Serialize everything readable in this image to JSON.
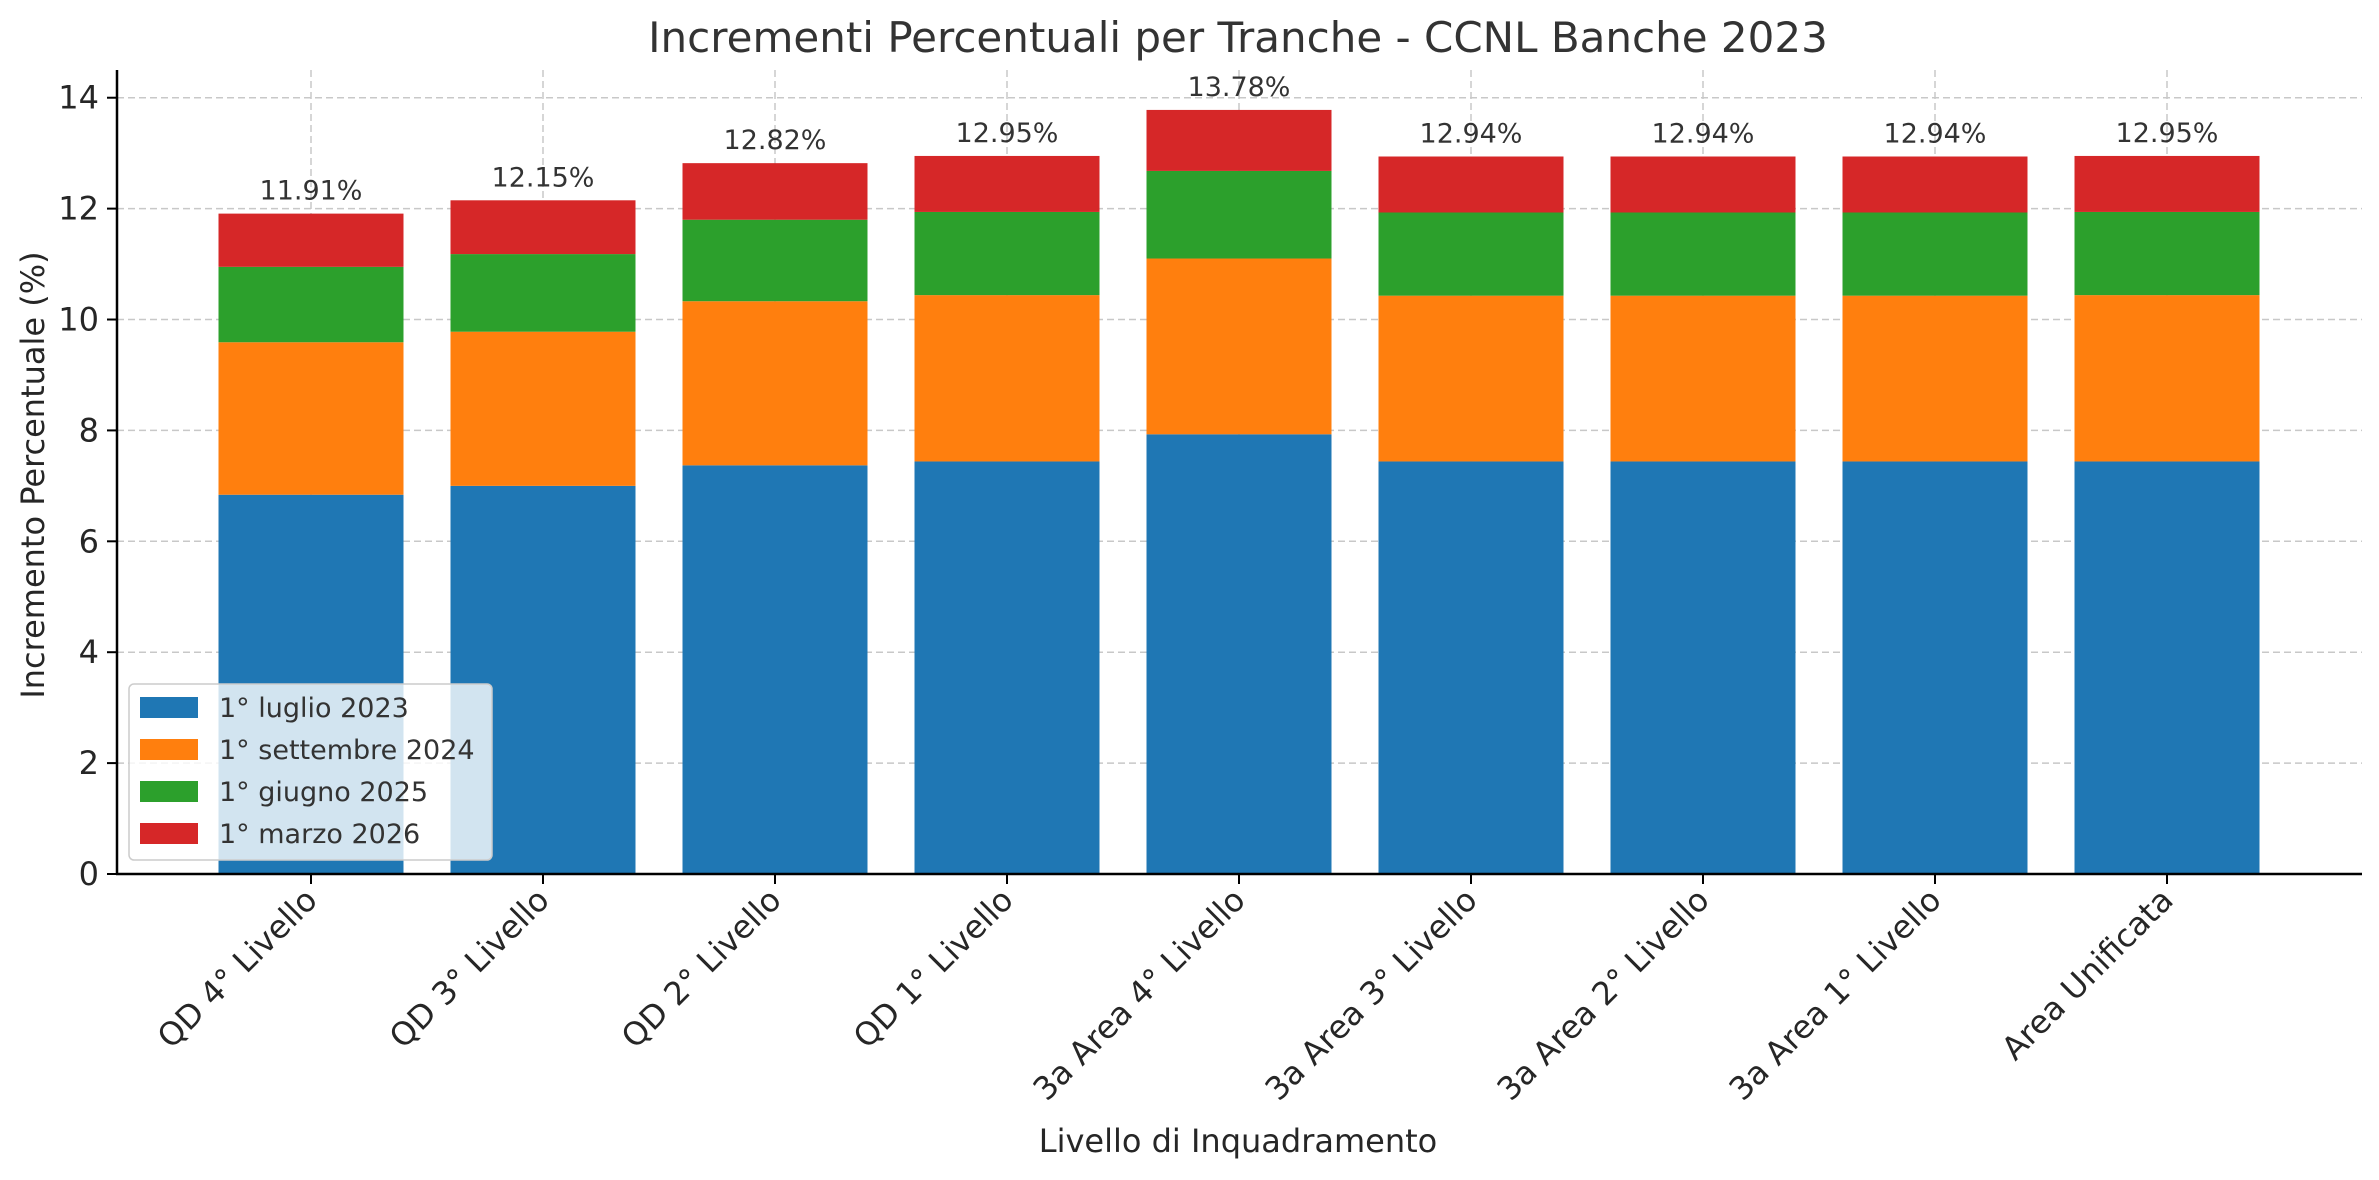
{
  "chart_data": {
    "type": "bar",
    "stacked": true,
    "title": "Incrementi Percentuali per Tranche - CCNL Banche 2023",
    "xlabel": "Livello di Inquadramento",
    "ylabel": "Incremento Percentuale (%)",
    "ylim": [
      0,
      14.5
    ],
    "yticks": [
      0,
      2,
      4,
      6,
      8,
      10,
      12,
      14
    ],
    "grid": true,
    "legend_position": "lower-left",
    "categories": [
      "QD 4° Livello",
      "QD 3° Livello",
      "QD 2° Livello",
      "QD 1° Livello",
      "3a Area 4° Livello",
      "3a Area 3° Livello",
      "3a Area 2° Livello",
      "3a Area 1° Livello",
      "Area Unificata"
    ],
    "series": [
      {
        "name": "1° luglio 2023",
        "color": "#1f77b4",
        "values": [
          6.84,
          7.0,
          7.37,
          7.44,
          7.93,
          7.44,
          7.44,
          7.44,
          7.44
        ]
      },
      {
        "name": "1° settembre 2024",
        "color": "#ff7f0e",
        "values": [
          2.75,
          2.78,
          2.96,
          3.0,
          3.17,
          2.99,
          2.99,
          2.99,
          3.0
        ]
      },
      {
        "name": "1° giugno 2025",
        "color": "#2ca02c",
        "values": [
          1.36,
          1.4,
          1.47,
          1.5,
          1.58,
          1.5,
          1.5,
          1.5,
          1.5
        ]
      },
      {
        "name": "1° marzo 2026",
        "color": "#d62728",
        "values": [
          0.96,
          0.97,
          1.02,
          1.01,
          1.1,
          1.01,
          1.01,
          1.01,
          1.01
        ]
      }
    ],
    "total_labels": [
      "11.91%",
      "12.15%",
      "12.82%",
      "12.95%",
      "13.78%",
      "12.94%",
      "12.94%",
      "12.94%",
      "12.95%"
    ]
  }
}
